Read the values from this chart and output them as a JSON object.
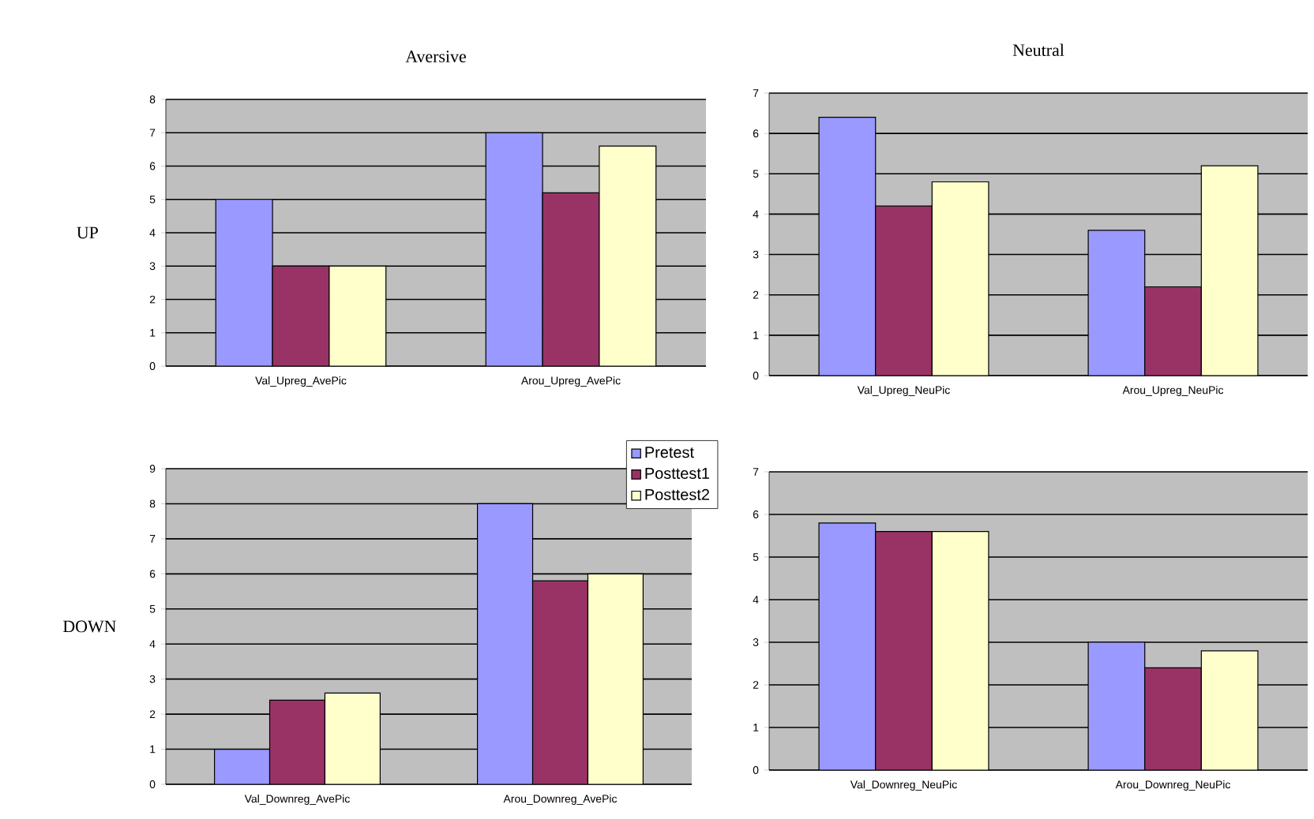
{
  "chart_data": [
    {
      "type": "bar",
      "title": "Aversive",
      "ylabel": "UP",
      "categories": [
        "Val_Upreg_AvePic",
        "Arou_Upreg_AvePic"
      ],
      "series": [
        {
          "color": "#9999ff",
          "values": [
            5,
            7
          ]
        },
        {
          "color": "#993366",
          "values": [
            3,
            5.2
          ]
        },
        {
          "color": "#ffffcc",
          "values": [
            3,
            6.6
          ]
        }
      ],
      "ylim": [
        0,
        8
      ],
      "yticks": [
        0,
        1,
        2,
        3,
        4,
        5,
        6,
        7,
        8
      ],
      "grid": "y"
    },
    {
      "type": "bar",
      "title": "Neutral",
      "categories": [
        "Val_Upreg_NeuPic",
        "Arou_Upreg_NeuPic"
      ],
      "series": [
        {
          "color": "#9999ff",
          "values": [
            6.4,
            3.6
          ]
        },
        {
          "color": "#993366",
          "values": [
            4.2,
            2.2
          ]
        },
        {
          "color": "#ffffcc",
          "values": [
            4.8,
            5.2
          ]
        }
      ],
      "ylim": [
        0,
        7
      ],
      "yticks": [
        0,
        1,
        2,
        3,
        4,
        5,
        6,
        7
      ],
      "grid": "y"
    },
    {
      "type": "bar",
      "ylabel": "DOWN",
      "categories": [
        "Val_Downreg_AvePic",
        "Arou_Downreg_AvePic"
      ],
      "series": [
        {
          "name": "Pretest",
          "color": "#9999ff",
          "values": [
            1,
            8
          ]
        },
        {
          "name": "Posttest1",
          "color": "#993366",
          "values": [
            2.4,
            5.8
          ]
        },
        {
          "name": "Posttest2",
          "color": "#ffffcc",
          "values": [
            2.6,
            6
          ]
        }
      ],
      "ylim": [
        0,
        9
      ],
      "yticks": [
        0,
        1,
        2,
        3,
        4,
        5,
        6,
        7,
        8,
        9
      ],
      "grid": "y",
      "legend": "top right"
    },
    {
      "type": "bar",
      "categories": [
        "Val_Downreg_NeuPic",
        "Arou_Downreg_NeuPic"
      ],
      "series": [
        {
          "color": "#9999ff",
          "values": [
            5.8,
            3
          ]
        },
        {
          "color": "#993366",
          "values": [
            5.6,
            2.4
          ]
        },
        {
          "color": "#ffffcc",
          "values": [
            5.6,
            2.8
          ]
        }
      ],
      "ylim": [
        0,
        7
      ],
      "yticks": [
        0,
        1,
        2,
        3,
        4,
        5,
        6,
        7
      ],
      "grid": "y"
    }
  ]
}
